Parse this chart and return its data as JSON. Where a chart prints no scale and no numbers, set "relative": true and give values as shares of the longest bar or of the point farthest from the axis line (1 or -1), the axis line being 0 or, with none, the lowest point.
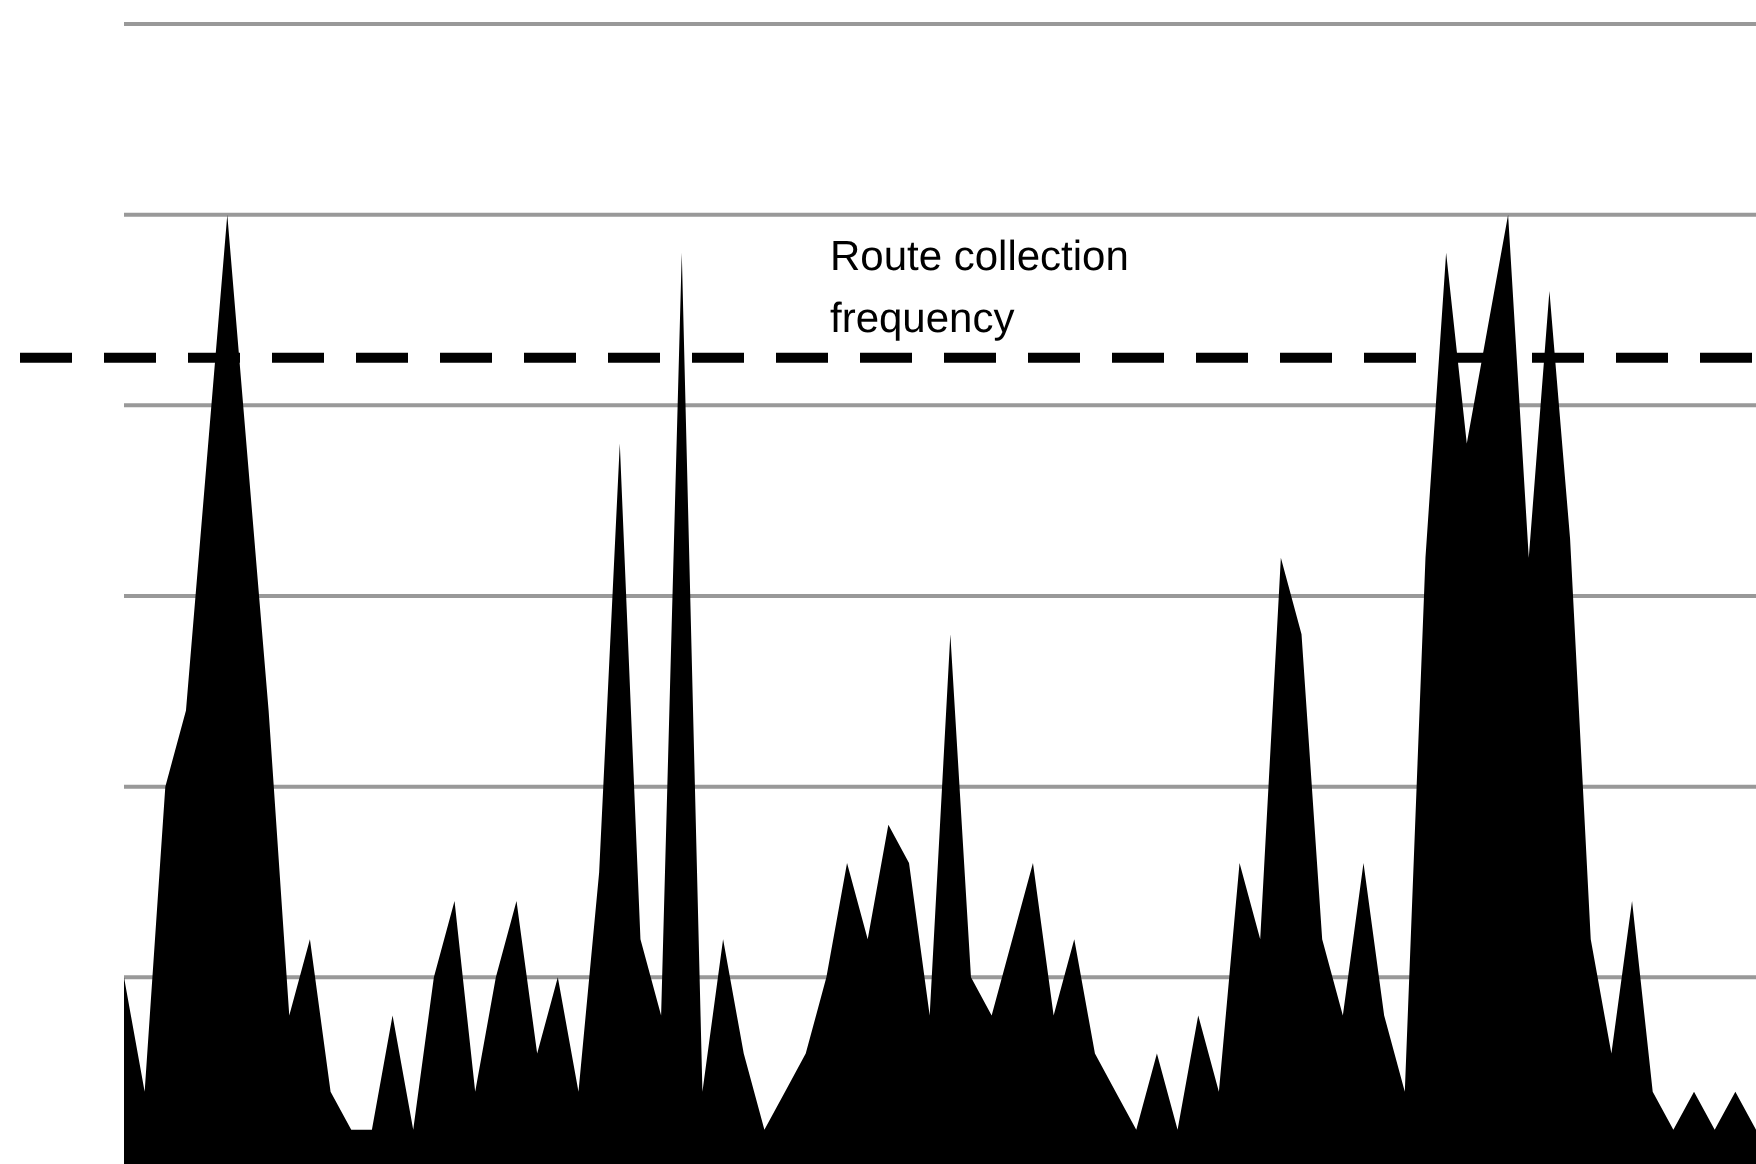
{
  "chart_data": {
    "type": "area",
    "relative": true,
    "categories": [
      null,
      null,
      null,
      null,
      null,
      null,
      null,
      null,
      null,
      null,
      null,
      null,
      null,
      null,
      null,
      null,
      null,
      null,
      null,
      null,
      null,
      null,
      null,
      null,
      null,
      null,
      null,
      null,
      null,
      null,
      null,
      null,
      null,
      null,
      null,
      null,
      null,
      null,
      null,
      null,
      null,
      null,
      null,
      null,
      null,
      null,
      null,
      null,
      null,
      null,
      null,
      null,
      null,
      null,
      null,
      null,
      null,
      null,
      null,
      null,
      null,
      null,
      null,
      null,
      null,
      null,
      null,
      null,
      null,
      null,
      null,
      null,
      null,
      null,
      null,
      null,
      null,
      null,
      null,
      null
    ],
    "series": [
      {
        "color": "#000000",
        "values": [
          0.2,
          0.08,
          0.4,
          0.48,
          0.74,
          1.0,
          0.74,
          0.48,
          0.16,
          0.24,
          0.08,
          0.04,
          0.04,
          0.16,
          0.04,
          0.2,
          0.28,
          0.08,
          0.2,
          0.28,
          0.12,
          0.2,
          0.08,
          0.31,
          0.76,
          0.24,
          0.16,
          0.96,
          0.08,
          0.24,
          0.12,
          0.04,
          0.08,
          0.12,
          0.2,
          0.32,
          0.24,
          0.36,
          0.32,
          0.16,
          0.56,
          0.2,
          0.16,
          0.24,
          0.32,
          0.16,
          0.24,
          0.12,
          0.08,
          0.04,
          0.12,
          0.04,
          0.16,
          0.08,
          0.32,
          0.24,
          0.64,
          0.56,
          0.24,
          0.16,
          0.32,
          0.16,
          0.08,
          0.64,
          0.96,
          0.76,
          0.88,
          1.0,
          0.64,
          0.92,
          0.66,
          0.24,
          0.12,
          0.28,
          0.08,
          0.04,
          0.08,
          0.04,
          0.08,
          0.04
        ]
      }
    ],
    "grid": "y",
    "ref_lines": [
      {
        "axis": "y",
        "value": 0.85,
        "label": "Route collection frequency",
        "color": "#000000",
        "line_style": "dashed"
      }
    ]
  }
}
